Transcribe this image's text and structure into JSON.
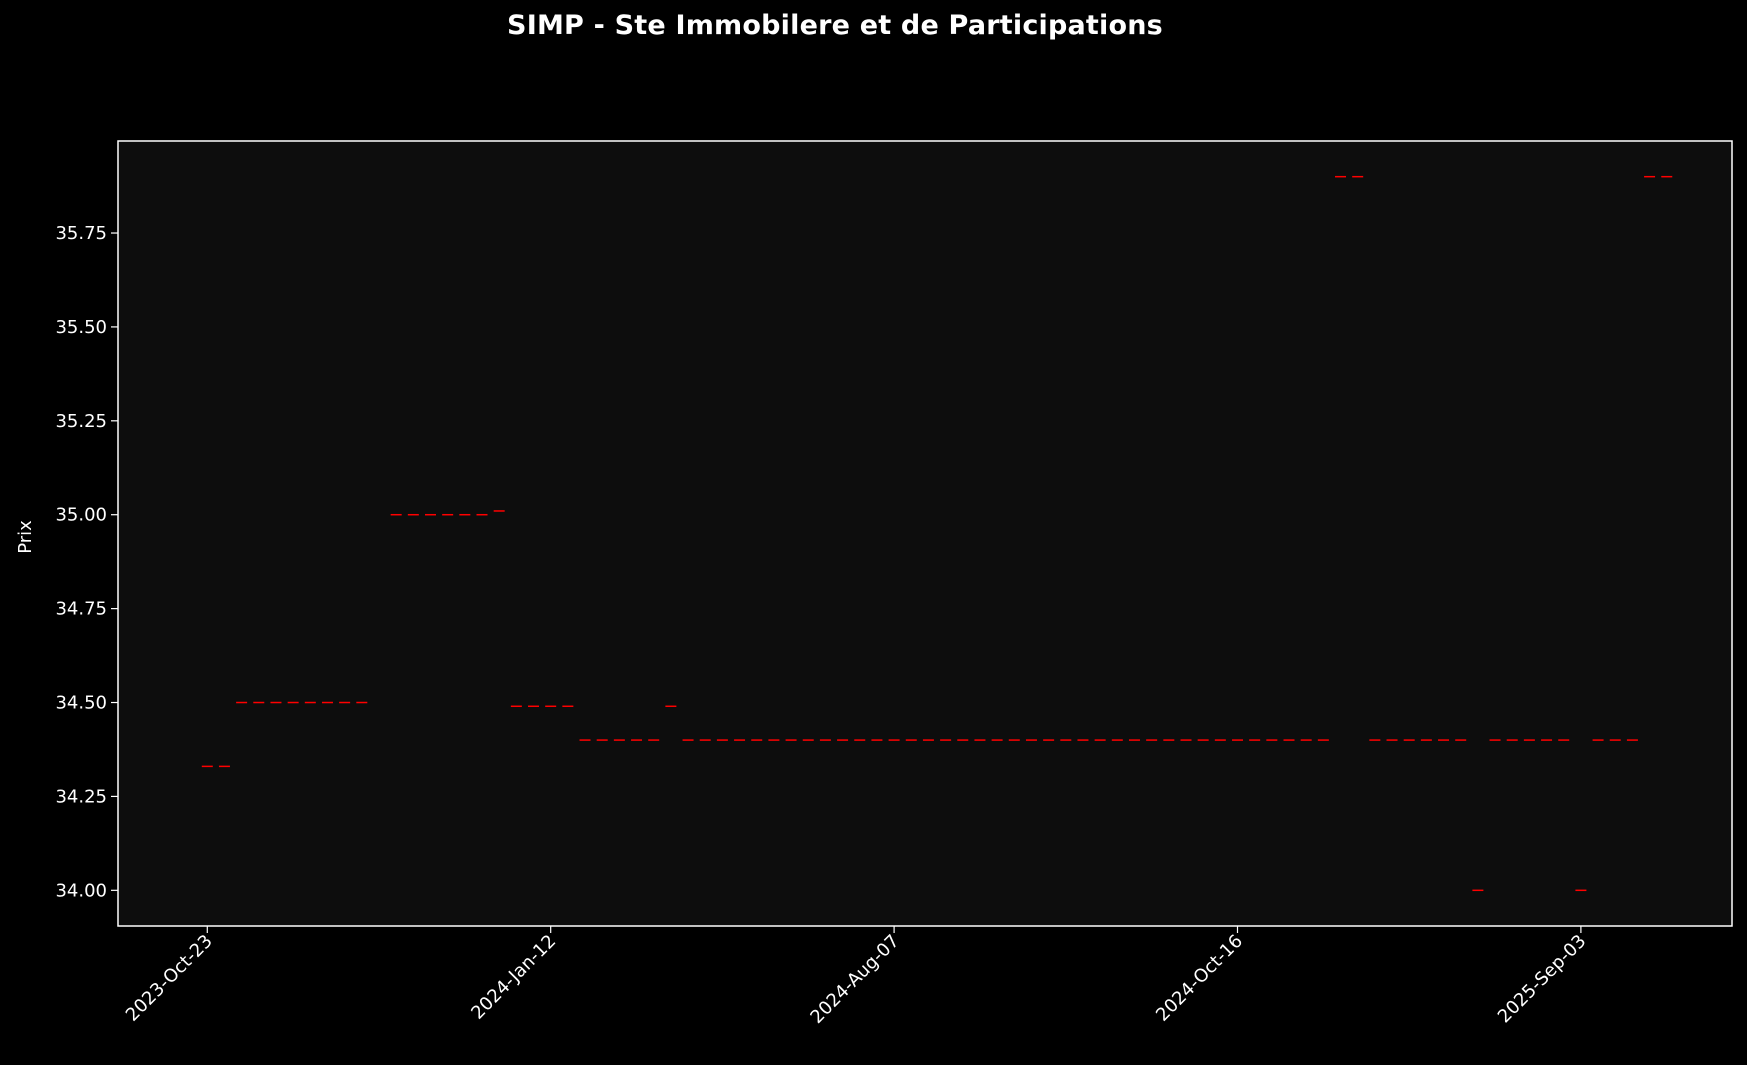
{
  "colors": {
    "background": "#000000",
    "plot_background": "#0d0d0d",
    "axes": "#ffffff",
    "text": "#ffffff",
    "series": "#ff0000"
  },
  "chart_data": {
    "type": "scatter",
    "marker": "hline",
    "title": "SIMP - Ste Immobilere et de Participations",
    "xlabel": "",
    "ylabel": "Prix",
    "ylim": [
      33.905,
      35.995
    ],
    "xlim": [
      -5.2,
      88.8
    ],
    "grid": false,
    "legend": "none",
    "x_ticks": [
      {
        "index": 0,
        "label": "2023-Oct-23"
      },
      {
        "index": 20,
        "label": "2024-Jan-12"
      },
      {
        "index": 40,
        "label": "2024-Aug-07"
      },
      {
        "index": 60,
        "label": "2024-Oct-16"
      },
      {
        "index": 80,
        "label": "2025-Sep-03"
      }
    ],
    "y_ticks": [
      34.0,
      34.25,
      34.5,
      34.75,
      35.0,
      35.25,
      35.5,
      35.75
    ],
    "y_tick_labels": [
      "34.00",
      "34.25",
      "34.50",
      "34.75",
      "35.00",
      "35.25",
      "35.50",
      "35.75"
    ],
    "series": [
      {
        "x": [
          0,
          1,
          2,
          3,
          4,
          5,
          6,
          7,
          8,
          9,
          11,
          12,
          13,
          14,
          15,
          16,
          17,
          18,
          19,
          20,
          21,
          22,
          23,
          24,
          25,
          26,
          27,
          28,
          29,
          30,
          31,
          32,
          33,
          34,
          35,
          36,
          37,
          38,
          39,
          40,
          41,
          42,
          43,
          44,
          45,
          46,
          47,
          48,
          49,
          50,
          51,
          52,
          53,
          54,
          55,
          56,
          57,
          58,
          59,
          60,
          61,
          62,
          63,
          64,
          65,
          66,
          67,
          68,
          69,
          70,
          71,
          72,
          73,
          74,
          75,
          76,
          77,
          78,
          79,
          80,
          81,
          82,
          83,
          84,
          85
        ],
        "y": [
          34.33,
          34.33,
          34.5,
          34.5,
          34.5,
          34.5,
          34.5,
          34.5,
          34.5,
          34.5,
          35.0,
          35.0,
          35.0,
          35.0,
          35.0,
          35.0,
          35.01,
          34.49,
          34.49,
          34.49,
          34.49,
          34.4,
          34.4,
          34.4,
          34.4,
          34.4,
          34.49,
          34.4,
          34.4,
          34.4,
          34.4,
          34.4,
          34.4,
          34.4,
          34.4,
          34.4,
          34.4,
          34.4,
          34.4,
          34.4,
          34.4,
          34.4,
          34.4,
          34.4,
          34.4,
          34.4,
          34.4,
          34.4,
          34.4,
          34.4,
          34.4,
          34.4,
          34.4,
          34.4,
          34.4,
          34.4,
          34.4,
          34.4,
          34.4,
          34.4,
          34.4,
          34.4,
          34.4,
          34.4,
          34.4,
          35.9,
          35.9,
          34.4,
          34.4,
          34.4,
          34.4,
          34.4,
          34.4,
          34.0,
          34.4,
          34.4,
          34.4,
          34.4,
          34.4,
          34.0,
          34.4,
          34.4,
          34.4,
          35.9,
          35.9
        ]
      }
    ]
  }
}
